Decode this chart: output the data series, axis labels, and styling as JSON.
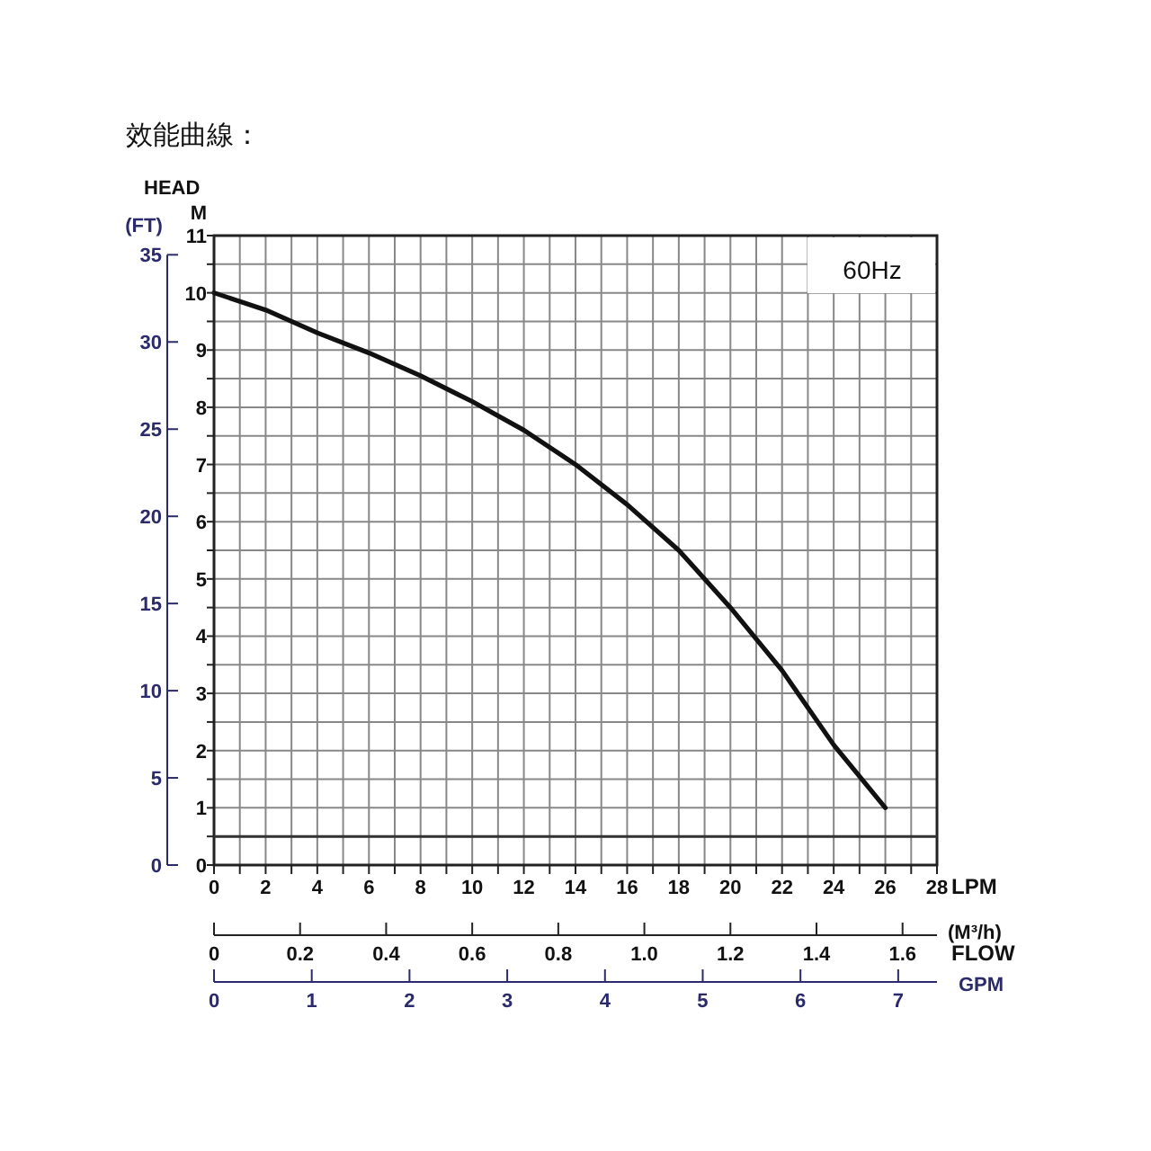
{
  "chart_data": {
    "type": "line",
    "title": "效能曲線：",
    "xlabel": "LPM",
    "ylabel": "M",
    "y2label": "(FT)",
    "x2label": "(M³/h)",
    "annotations": [
      "HEAD",
      "FLOW",
      "60Hz",
      "GPM",
      "0",
      "1",
      "2",
      "3",
      "4",
      "5",
      "6",
      "7"
    ],
    "x": [
      0,
      2,
      4,
      6,
      8,
      10,
      12,
      14,
      16,
      18,
      20,
      22,
      24,
      26
    ],
    "series": [
      {
        "color": "#111111",
        "values": [
          10.0,
          9.7,
          9.3,
          8.95,
          8.55,
          8.1,
          7.6,
          7.0,
          6.3,
          5.5,
          4.5,
          3.4,
          2.1,
          1.0
        ]
      }
    ],
    "xlim": [
      0,
      28
    ],
    "xticks": [
      0,
      {
        "value": 1,
        "label": null
      },
      2,
      {
        "value": 3,
        "label": null
      },
      4,
      {
        "value": 5,
        "label": null
      },
      6,
      {
        "value": 7,
        "label": null
      },
      8,
      {
        "value": 9,
        "label": null
      },
      10,
      {
        "value": 11,
        "label": null
      },
      12,
      {
        "value": 13,
        "label": null
      },
      14,
      {
        "value": 15,
        "label": null
      },
      16,
      {
        "value": 17,
        "label": null
      },
      18,
      {
        "value": 19,
        "label": null
      },
      20,
      {
        "value": 21,
        "label": null
      },
      22,
      {
        "value": 23,
        "label": null
      },
      24,
      {
        "value": 25,
        "label": null
      },
      26,
      {
        "value": 27,
        "label": null
      },
      28
    ],
    "ylim": [
      0,
      11
    ],
    "yticks": [
      0,
      {
        "value": 0.5,
        "label": null
      },
      1,
      {
        "value": 1.5,
        "label": null
      },
      2,
      {
        "value": 2.5,
        "label": null
      },
      3,
      {
        "value": 3.5,
        "label": null
      },
      4,
      {
        "value": 4.5,
        "label": null
      },
      5,
      {
        "value": 5.5,
        "label": null
      },
      6,
      {
        "value": 6.5,
        "label": null
      },
      7,
      {
        "value": 7.5,
        "label": null
      },
      8,
      {
        "value": 8.5,
        "label": null
      },
      9,
      {
        "value": 9.5,
        "label": null
      },
      10,
      {
        "value": 10.5,
        "label": null
      },
      11
    ],
    "y2lim": [
      0,
      36.1
    ],
    "y2ticks": [
      0,
      5,
      10,
      15,
      20,
      25,
      30,
      35
    ],
    "x2lim": [
      0,
      1.68
    ],
    "x2ticks": [
      0,
      {
        "value": 0.2,
        "label": "0.2"
      },
      {
        "value": 0.4,
        "label": "0.4"
      },
      {
        "value": 0.6,
        "label": "0.6"
      },
      {
        "value": 0.8,
        "label": "0.8"
      },
      {
        "value": 1.0,
        "label": "1.0"
      },
      {
        "value": 1.2,
        "label": "1.2"
      },
      {
        "value": 1.4,
        "label": "1.4"
      },
      {
        "value": 1.6,
        "label": "1.6"
      }
    ],
    "ref_lines": [
      {
        "axis": "y",
        "value": 0.5,
        "color": "#333333"
      }
    ],
    "grid": true,
    "legend": false,
    "marker": "none",
    "line_style": "solid"
  }
}
